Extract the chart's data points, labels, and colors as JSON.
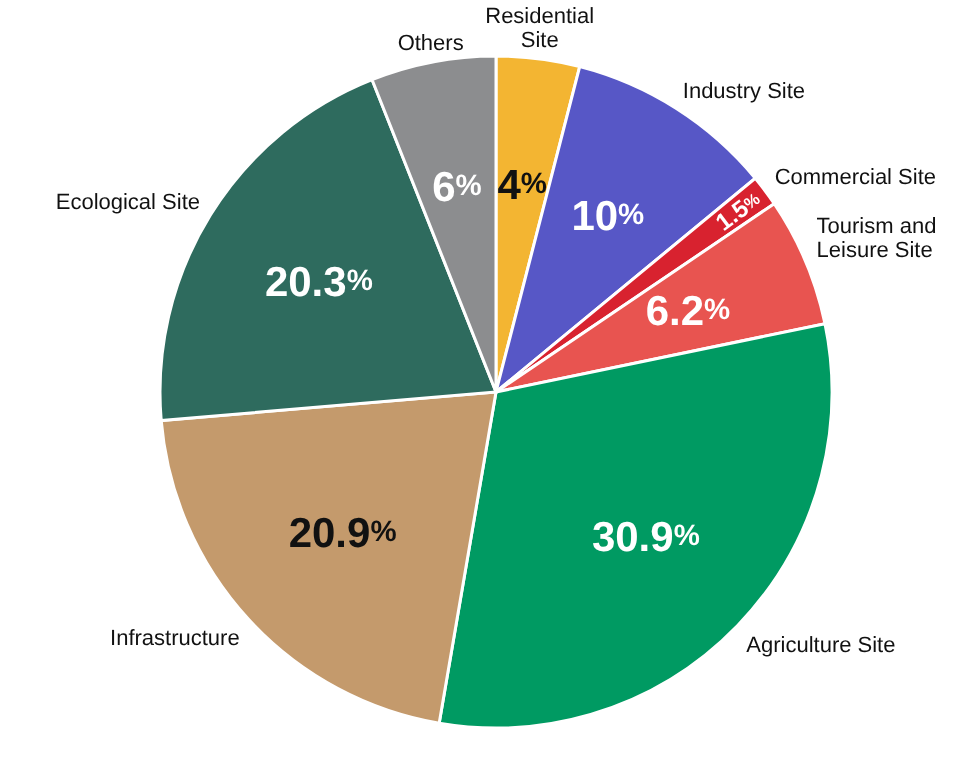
{
  "chart_data": {
    "type": "pie",
    "categories": [
      "Residential Site",
      "Industry Site",
      "Commercial Site",
      "Tourism and Leisure Site",
      "Agriculture Site",
      "Infrastructure",
      "Ecological Site",
      "Others"
    ],
    "values": [
      4,
      10,
      1.5,
      6.2,
      30.9,
      20.9,
      20.3,
      6
    ],
    "value_labels": [
      "4%",
      "10%",
      "1.5%",
      "6.2%",
      "30.9%",
      "20.9%",
      "20.3%",
      "6%"
    ],
    "colors": [
      "#f3b532",
      "#5757c6",
      "#d8222f",
      "#e85450",
      "#009a62",
      "#c49a6c",
      "#2e6b5e",
      "#8c8d8f"
    ]
  }
}
